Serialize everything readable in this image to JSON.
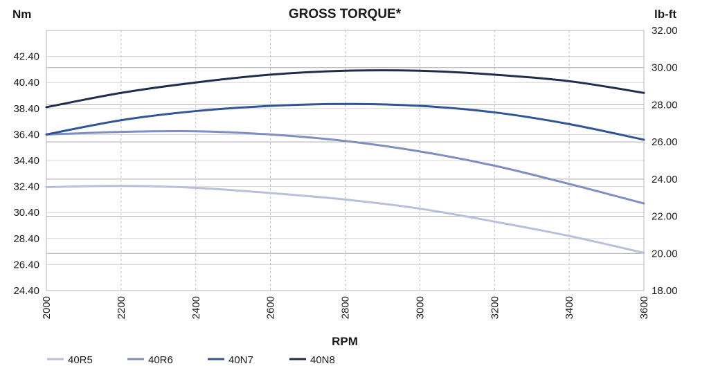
{
  "chart_data": {
    "type": "line",
    "title": "GROSS TORQUE*",
    "ylabel_left": "Nm",
    "ylabel_right": "lb-ft",
    "xlabel": "RPM",
    "xlim": [
      2000,
      3600
    ],
    "ylim_left": [
      24.4,
      44.4
    ],
    "ylim_right": [
      18.0,
      32.0
    ],
    "x_ticks": [
      "2000",
      "2200",
      "2400",
      "2600",
      "2800",
      "3000",
      "3200",
      "3400",
      "3600"
    ],
    "y_left_ticks": [
      "24.40",
      "26.40",
      "28.40",
      "30.40",
      "32.40",
      "34.40",
      "36.40",
      "38.40",
      "40.40",
      "42.40"
    ],
    "y_right_ticks": [
      "18.00",
      "20.00",
      "22.00",
      "24.00",
      "26.00",
      "28.00",
      "30.00",
      "32.00"
    ],
    "grid": true,
    "legend_position": "bottom-left",
    "x": [
      2000,
      2200,
      2400,
      2600,
      2800,
      3000,
      3200,
      3400,
      3600
    ],
    "series": [
      {
        "name": "40R5",
        "color": "#b7bfdb",
        "values": [
          32.35,
          32.45,
          32.3,
          31.9,
          31.4,
          30.7,
          29.7,
          28.6,
          27.3
        ]
      },
      {
        "name": "40R6",
        "color": "#7d8fc2",
        "values": [
          36.4,
          36.6,
          36.65,
          36.4,
          35.9,
          35.1,
          34.0,
          32.6,
          31.1
        ]
      },
      {
        "name": "40N7",
        "color": "#2f5597",
        "values": [
          36.4,
          37.5,
          38.2,
          38.6,
          38.75,
          38.6,
          38.1,
          37.2,
          36.0
        ]
      },
      {
        "name": "40N8",
        "color": "#1f2d4d",
        "values": [
          38.5,
          39.6,
          40.4,
          41.0,
          41.3,
          41.3,
          41.0,
          40.5,
          39.6
        ]
      }
    ]
  }
}
